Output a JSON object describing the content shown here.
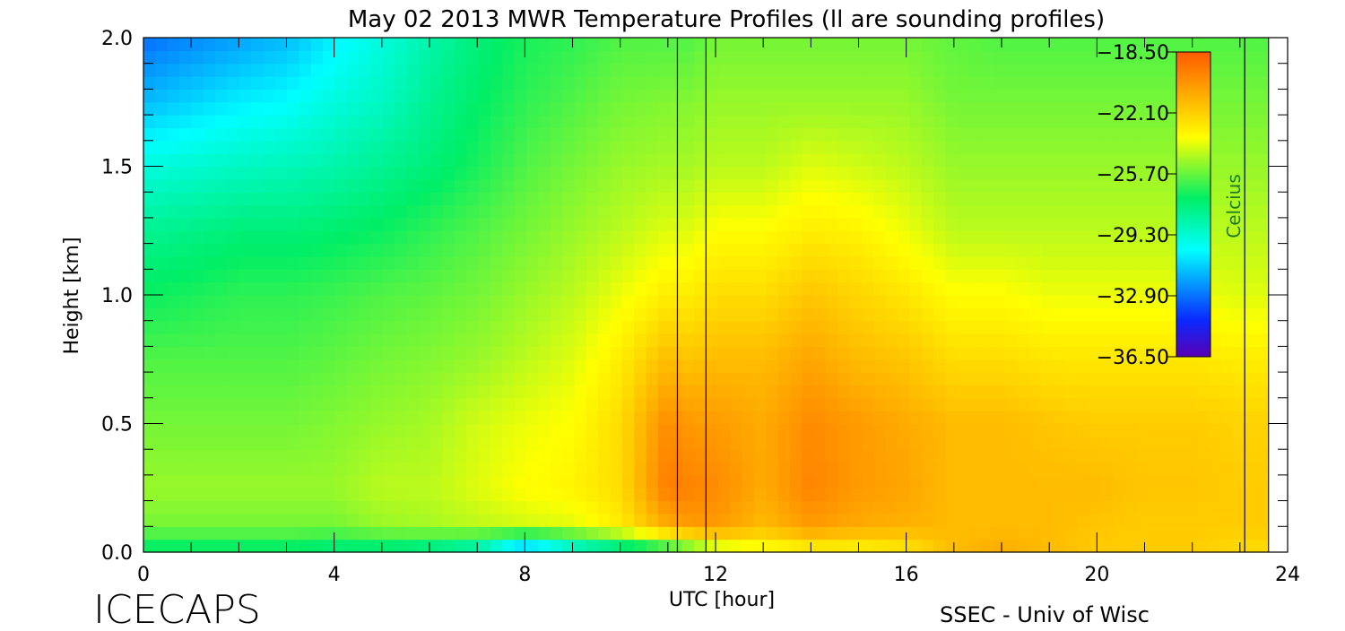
{
  "chart_data": {
    "type": "heatmap",
    "title": "May 02 2013 MWR Temperature Profiles (ll are sounding profiles)",
    "xlabel": "UTC [hour]",
    "ylabel": "Height [km]",
    "xlim": [
      0,
      24
    ],
    "ylim": [
      0.0,
      2.0
    ],
    "x_ticks": [
      "0",
      "4",
      "8",
      "12",
      "16",
      "20",
      "24"
    ],
    "y_ticks": [
      "0.0",
      "0.5",
      "1.0",
      "1.5",
      "2.0"
    ],
    "colorbar": {
      "label": "Celcius",
      "ticks": [
        "-18.50",
        "-22.10",
        "-25.70",
        "-29.30",
        "-32.90",
        "-36.50"
      ],
      "range": [
        -36.5,
        -18.5
      ]
    },
    "sounding_times_utc": [
      11.2,
      11.8,
      23.1
    ],
    "data_end_utc": 23.6,
    "profile_times": [
      0,
      1,
      2,
      3,
      4,
      5,
      6,
      7,
      8,
      9,
      10,
      11,
      11.5,
      12,
      13,
      14,
      15,
      16,
      17,
      18,
      19,
      20,
      21,
      22,
      23,
      23.6
    ],
    "heights_km": [
      0.0,
      0.1,
      0.25,
      0.5,
      0.75,
      1.0,
      1.25,
      1.5,
      1.75,
      2.0
    ],
    "temperature_c": [
      [
        -27.5,
        -25.5,
        -25.0,
        -25.5,
        -26.0,
        -27.0,
        -28.0,
        -29.5,
        -31.5,
        -33.0
      ],
      [
        -27.5,
        -25.5,
        -25.0,
        -25.5,
        -26.0,
        -26.8,
        -27.8,
        -29.3,
        -31.0,
        -32.5
      ],
      [
        -27.5,
        -25.5,
        -25.0,
        -25.5,
        -26.0,
        -26.5,
        -27.5,
        -29.0,
        -30.5,
        -32.0
      ],
      [
        -27.5,
        -25.5,
        -25.0,
        -25.5,
        -26.0,
        -26.5,
        -27.5,
        -28.8,
        -30.2,
        -31.5
      ],
      [
        -28.0,
        -25.5,
        -25.0,
        -25.3,
        -25.8,
        -26.3,
        -27.3,
        -28.5,
        -29.5,
        -30.5
      ],
      [
        -28.0,
        -25.0,
        -24.5,
        -25.0,
        -25.5,
        -26.0,
        -27.0,
        -28.0,
        -29.0,
        -29.5
      ],
      [
        -28.5,
        -24.8,
        -24.5,
        -24.8,
        -25.3,
        -25.8,
        -26.5,
        -27.5,
        -28.0,
        -28.5
      ],
      [
        -29.5,
        -24.5,
        -24.0,
        -24.2,
        -25.0,
        -25.5,
        -26.0,
        -26.8,
        -27.2,
        -27.5
      ],
      [
        -33.0,
        -24.2,
        -23.5,
        -23.8,
        -24.5,
        -25.0,
        -25.5,
        -26.0,
        -26.5,
        -26.8
      ],
      [
        -30.5,
        -24.0,
        -23.2,
        -23.5,
        -24.0,
        -24.5,
        -25.0,
        -25.5,
        -26.0,
        -26.5
      ],
      [
        -29.0,
        -23.0,
        -22.5,
        -22.5,
        -23.0,
        -23.8,
        -24.5,
        -25.0,
        -25.5,
        -26.0
      ],
      [
        -27.5,
        -21.0,
        -19.5,
        -20.0,
        -21.5,
        -23.0,
        -24.0,
        -24.8,
        -25.3,
        -26.0
      ],
      [
        -26.5,
        -20.5,
        -19.8,
        -20.5,
        -21.8,
        -23.0,
        -24.0,
        -24.8,
        -25.3,
        -26.0
      ],
      [
        -25.0,
        -20.5,
        -20.0,
        -20.5,
        -21.5,
        -22.5,
        -23.5,
        -24.5,
        -25.0,
        -25.5
      ],
      [
        -24.0,
        -21.5,
        -21.0,
        -21.0,
        -21.5,
        -22.5,
        -23.5,
        -24.5,
        -25.0,
        -25.5
      ],
      [
        -23.5,
        -20.5,
        -19.8,
        -20.0,
        -20.8,
        -21.8,
        -23.0,
        -24.0,
        -25.0,
        -25.5
      ],
      [
        -23.5,
        -21.0,
        -20.5,
        -20.5,
        -21.5,
        -22.3,
        -23.2,
        -24.2,
        -25.0,
        -25.5
      ],
      [
        -23.0,
        -21.2,
        -20.8,
        -21.0,
        -21.8,
        -22.8,
        -23.8,
        -24.5,
        -25.0,
        -25.5
      ],
      [
        -21.5,
        -21.5,
        -21.5,
        -21.5,
        -22.5,
        -23.5,
        -24.5,
        -25.0,
        -25.5,
        -25.8
      ],
      [
        -21.0,
        -21.5,
        -21.5,
        -21.5,
        -22.5,
        -23.5,
        -24.5,
        -25.0,
        -25.5,
        -26.0
      ],
      [
        -21.5,
        -21.5,
        -21.5,
        -21.8,
        -22.8,
        -23.8,
        -24.5,
        -25.0,
        -25.5,
        -26.0
      ],
      [
        -22.0,
        -21.8,
        -21.5,
        -22.0,
        -22.8,
        -23.8,
        -24.5,
        -25.0,
        -25.5,
        -26.0
      ],
      [
        -22.0,
        -22.0,
        -21.8,
        -22.0,
        -22.8,
        -23.8,
        -24.5,
        -25.0,
        -25.5,
        -26.0
      ],
      [
        -22.0,
        -22.0,
        -21.8,
        -22.0,
        -22.8,
        -23.8,
        -24.5,
        -25.0,
        -25.5,
        -26.0
      ],
      [
        -22.5,
        -22.0,
        -22.0,
        -22.2,
        -23.0,
        -24.0,
        -24.5,
        -25.0,
        -25.5,
        -26.0
      ],
      [
        -22.5,
        -22.0,
        -22.0,
        -22.2,
        -23.0,
        -24.0,
        -24.5,
        -25.0,
        -25.5,
        -26.0
      ]
    ]
  },
  "footer": {
    "logo_text": "ICECAPS",
    "credit": "SSEC - Univ of Wisc"
  }
}
